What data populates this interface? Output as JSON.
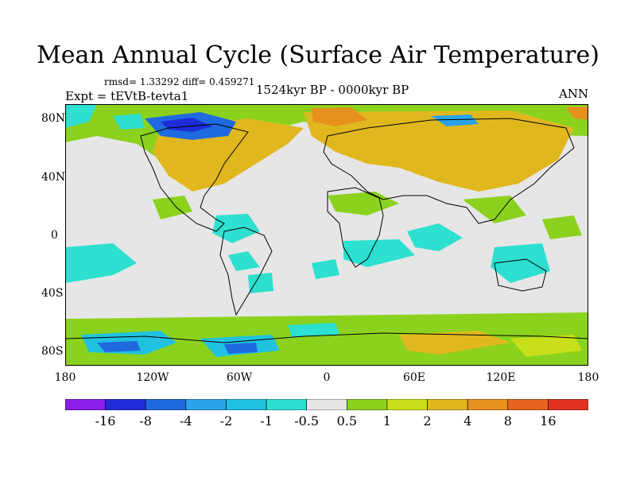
{
  "title": "Mean Annual Cycle (Surface Air Temperature)",
  "stats": "rmsd= 1.33292 diff= 0.459271",
  "experiment": "Expt = tEVtB-tevta1",
  "period": "1524kyr BP - 0000kyr BP",
  "season": "ANN",
  "lat_labels": [
    "80N",
    "40N",
    "0",
    "40S",
    "80S"
  ],
  "lon_labels": [
    "180",
    "120W",
    "60W",
    "0",
    "60E",
    "120E",
    "180"
  ],
  "colorbar": {
    "labels": [
      "-16",
      "-8",
      "-4",
      "-2",
      "-1",
      "-0.5",
      "0.5",
      "1",
      "2",
      "4",
      "8",
      "16"
    ],
    "colors": [
      "#8a1ee8",
      "#1f2cd9",
      "#1f6ae0",
      "#2aa3e8",
      "#20c2e0",
      "#2de0d0",
      "#e6e6e6",
      "#8bd21e",
      "#c8e01a",
      "#e0b81e",
      "#e6901e",
      "#e6641e",
      "#e0321e"
    ]
  }
}
